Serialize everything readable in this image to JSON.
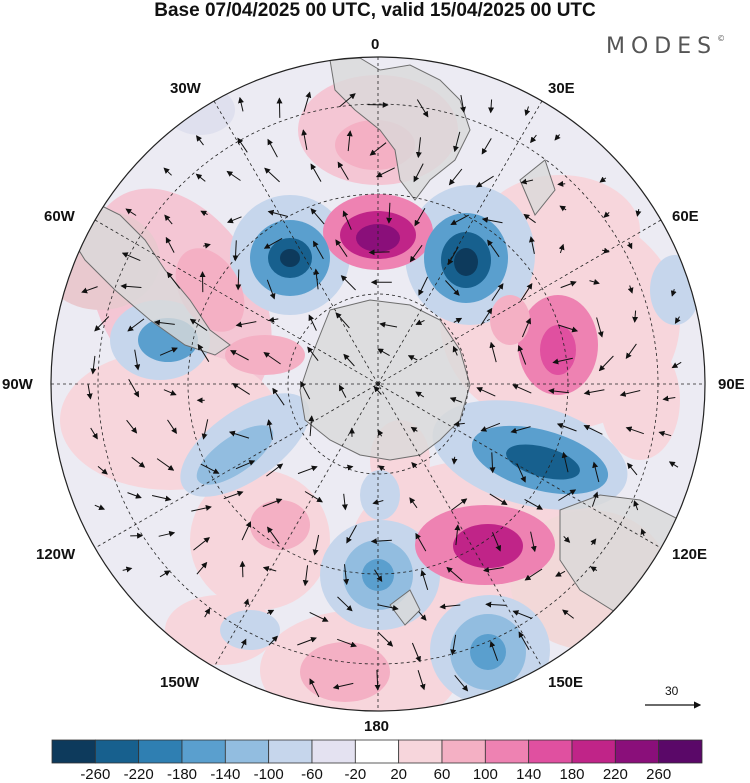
{
  "title": "Base 07/04/2025 00 UTC, valid 15/04/2025 00 UTC",
  "brand": {
    "name": "MODES",
    "mark": "©"
  },
  "longitude_labels": {
    "top": "0",
    "top_right": "30E",
    "upper_right": "60E",
    "right": "90E",
    "lower_right": "120E",
    "bottom_right": "150E",
    "bottom": "180",
    "bottom_left": "150W",
    "lower_left": "120W",
    "left": "90W",
    "upper_left": "60W",
    "top_left": "30W"
  },
  "vector_scale": {
    "value": "30"
  },
  "colorbar": {
    "labels": [
      "-260",
      "-220",
      "-180",
      "-140",
      "-100",
      "-60",
      "-20",
      "20",
      "60",
      "100",
      "140",
      "180",
      "220",
      "260"
    ],
    "colors": [
      "#0d3a5c",
      "#17608e",
      "#2f7fb2",
      "#5a9fce",
      "#92bde0",
      "#c6d6ec",
      "#e4e2f1",
      "#ffffff",
      "#f7d6dc",
      "#f4b0c4",
      "#ee82b2",
      "#e050a0",
      "#c02488",
      "#8a0f7a",
      "#5a0868"
    ]
  },
  "colors": {
    "land": "#d9d9d9",
    "coast": "#6e6e6e"
  }
}
